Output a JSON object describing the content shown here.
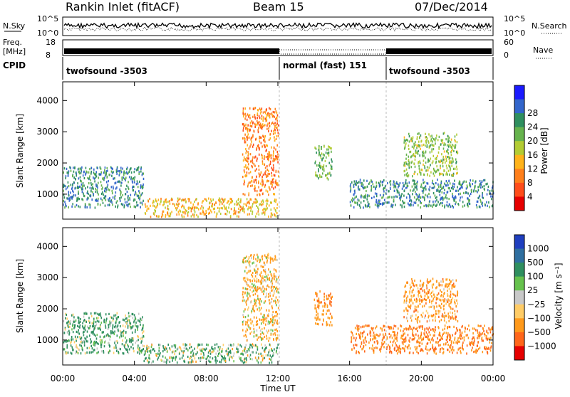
{
  "header": {
    "station": "Rankin Inlet (fitACF)",
    "beam": "Beam 15",
    "date": "07/Dec/2014"
  },
  "left_labels": {
    "nsky": "N.Sky",
    "freq": "Freq.",
    "freq_unit": "[MHz]",
    "cpid": "CPID"
  },
  "right_labels": {
    "nsearch": "N.Search",
    "nave": "Nave"
  },
  "ranges": {
    "nsky_top": "10^5",
    "nsky_bottom": "10^0",
    "nsearch_top": "10^5",
    "nsearch_bottom": "10^0",
    "freq_top": "18",
    "freq_bottom": "8",
    "nave_top": "60",
    "nave_bottom": "0"
  },
  "cpid_modes": [
    {
      "label": "twofsound -3503",
      "start_h": 0,
      "end_h": 12
    },
    {
      "label": "normal (fast) 151",
      "start_h": 12,
      "end_h": 18
    },
    {
      "label": "twofsound -3503",
      "start_h": 18,
      "end_h": 24
    }
  ],
  "chart_data": [
    {
      "type": "heatmap",
      "panel": "power",
      "xlabel": "Time UT",
      "ylabel": "Slant Range [km]",
      "xlim": [
        0,
        24
      ],
      "ylim": [
        200,
        4600
      ],
      "x_ticks": [
        "00:00",
        "04:00",
        "08:00",
        "12:00",
        "16:00",
        "20:00",
        "00:00"
      ],
      "y_ticks": [
        1000,
        2000,
        3000,
        4000
      ],
      "colorbar": {
        "label": "Power [dB]",
        "ticks": [
          4,
          8,
          12,
          16,
          20,
          24,
          28
        ],
        "colors": [
          "#1a1aff",
          "#3366cc",
          "#2f8f5f",
          "#66b34d",
          "#b3cc33",
          "#ffb31a",
          "#ff7f1a",
          "#ff4d1a",
          "#e60000"
        ]
      },
      "features": [
        {
          "t_start": 0,
          "t_end": 4.5,
          "range_min": 600,
          "range_max": 1900,
          "level": 27
        },
        {
          "t_start": 4.5,
          "t_end": 12,
          "range_min": 300,
          "range_max": 900,
          "level": 14
        },
        {
          "t_start": 10,
          "t_end": 12,
          "range_min": 1000,
          "range_max": 3800,
          "level": 10
        },
        {
          "t_start": 14,
          "t_end": 15,
          "range_min": 1500,
          "range_max": 2600,
          "level": 22
        },
        {
          "t_start": 16,
          "t_end": 24,
          "range_min": 600,
          "range_max": 1500,
          "level": 27
        },
        {
          "t_start": 19,
          "t_end": 22,
          "range_min": 1600,
          "range_max": 3000,
          "level": 20
        }
      ]
    },
    {
      "type": "heatmap",
      "panel": "velocity",
      "xlabel": "Time UT",
      "ylabel": "Slant Range [km]",
      "xlim": [
        0,
        24
      ],
      "ylim": [
        200,
        4600
      ],
      "x_ticks": [
        "00:00",
        "04:00",
        "08:00",
        "12:00",
        "16:00",
        "20:00",
        "00:00"
      ],
      "y_ticks": [
        1000,
        2000,
        3000,
        4000
      ],
      "colorbar": {
        "label": "Velocity [m s⁻¹]",
        "ticks": [
          "1000",
          "500",
          "100",
          "25",
          "−25",
          "−100",
          "−500",
          "−1000"
        ],
        "colors": [
          "#1f3fbf",
          "#2f6fa0",
          "#2f8f5f",
          "#66c24d",
          "#c8c8c8",
          "#ffcc66",
          "#ff991a",
          "#ff661a",
          "#e60000"
        ]
      },
      "features": [
        {
          "t_start": 0,
          "t_end": 4.5,
          "range_min": 600,
          "range_max": 1900,
          "level": 200
        },
        {
          "t_start": 4.5,
          "t_end": 12,
          "range_min": 300,
          "range_max": 900,
          "level": 150
        },
        {
          "t_start": 10,
          "t_end": 12,
          "range_min": 1000,
          "range_max": 3800,
          "level": -200
        },
        {
          "t_start": 14,
          "t_end": 15,
          "range_min": 1500,
          "range_max": 2600,
          "level": -400
        },
        {
          "t_start": 16,
          "t_end": 24,
          "range_min": 600,
          "range_max": 1500,
          "level": -500
        },
        {
          "t_start": 19,
          "t_end": 22,
          "range_min": 1600,
          "range_max": 3000,
          "level": -300
        }
      ]
    }
  ]
}
